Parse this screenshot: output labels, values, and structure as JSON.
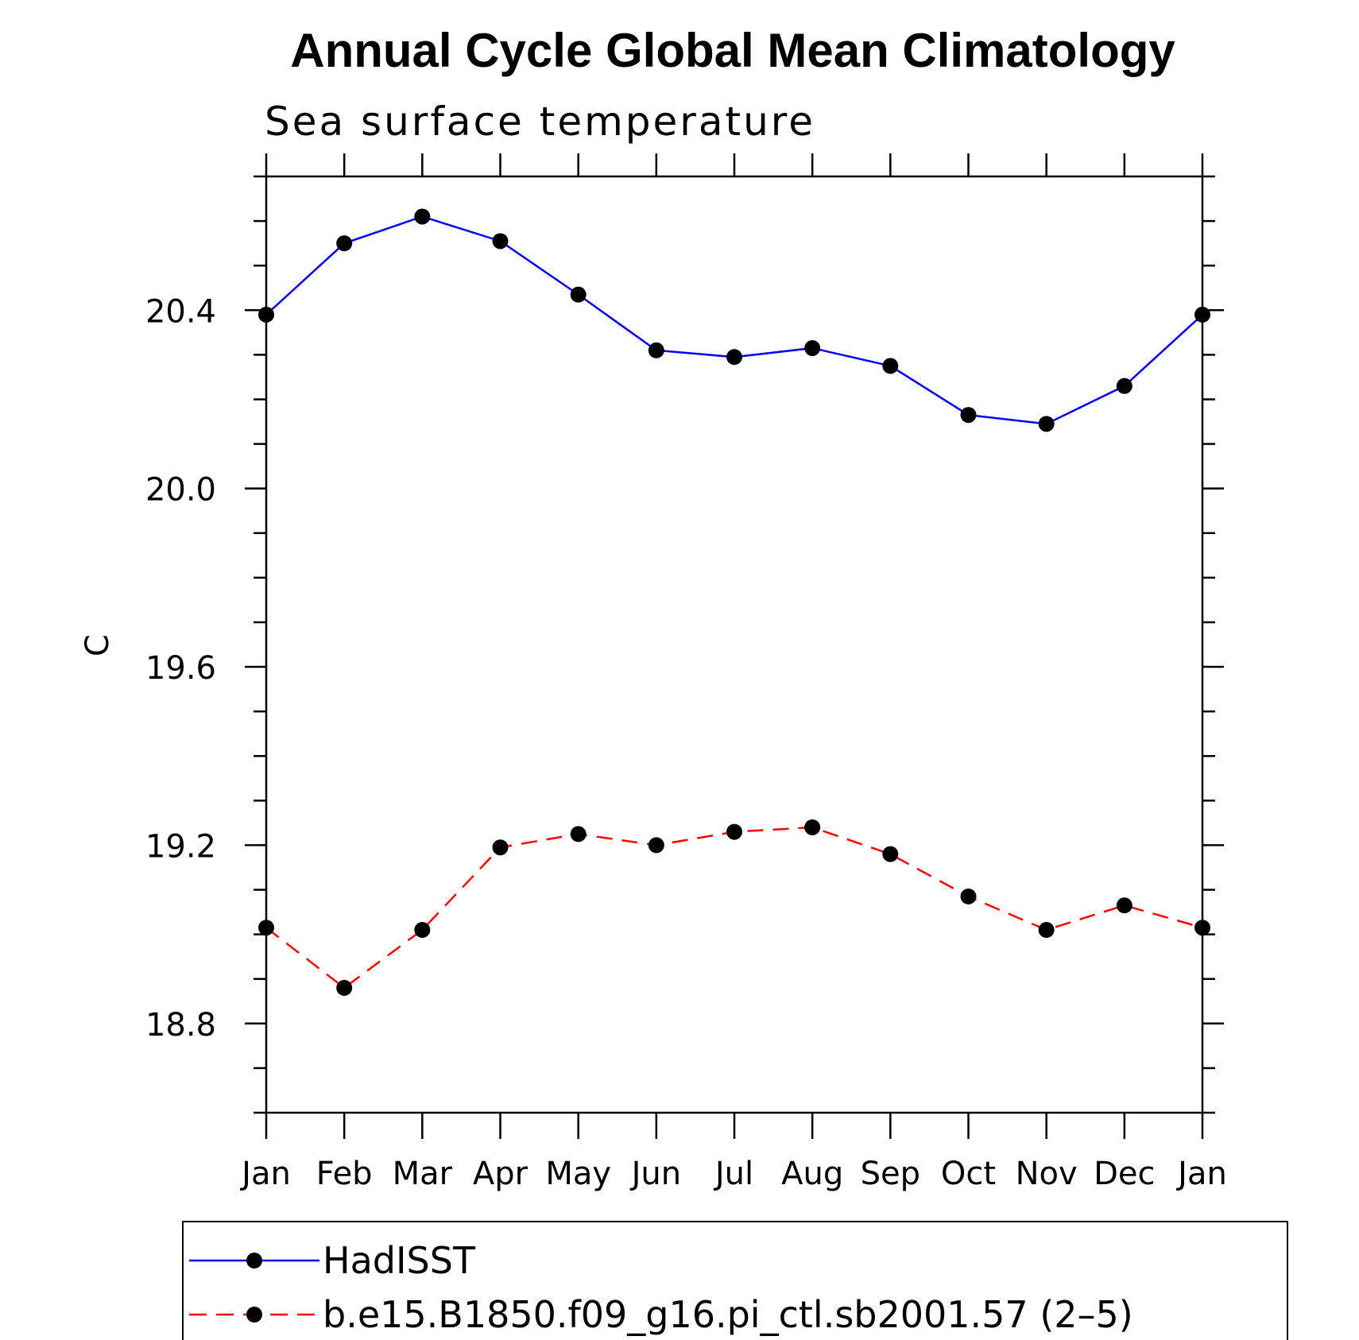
{
  "chart_data": {
    "type": "line",
    "title": "Annual Cycle Global Mean Climatology",
    "subtitle": "Sea surface temperature",
    "xlabel": "",
    "ylabel": "C",
    "categories": [
      "Jan",
      "Feb",
      "Mar",
      "Apr",
      "May",
      "Jun",
      "Jul",
      "Aug",
      "Sep",
      "Oct",
      "Nov",
      "Dec",
      "Jan"
    ],
    "ylim": [
      18.6,
      20.7
    ],
    "yticks": [
      "18.8",
      "19.2",
      "19.6",
      "20.0",
      "20.4"
    ],
    "yminor_step": 0.1,
    "grid": false,
    "legend_position": "bottom",
    "series": [
      {
        "name": "HadISST",
        "color": "#0000ff",
        "dash": "solid",
        "marker": "filled-circle",
        "values": [
          20.39,
          20.55,
          20.61,
          20.555,
          20.435,
          20.31,
          20.295,
          20.315,
          20.275,
          20.165,
          20.145,
          20.23,
          20.39
        ]
      },
      {
        "name": "b.e15.B1850.f09_g16.pi_ctl.sb2001.57 (2–5)",
        "color": "#ff0000",
        "dash": "dashed",
        "marker": "filled-circle",
        "values": [
          19.015,
          18.88,
          19.01,
          19.195,
          19.225,
          19.2,
          19.23,
          19.24,
          19.18,
          19.085,
          19.01,
          19.065,
          19.015
        ]
      }
    ]
  }
}
